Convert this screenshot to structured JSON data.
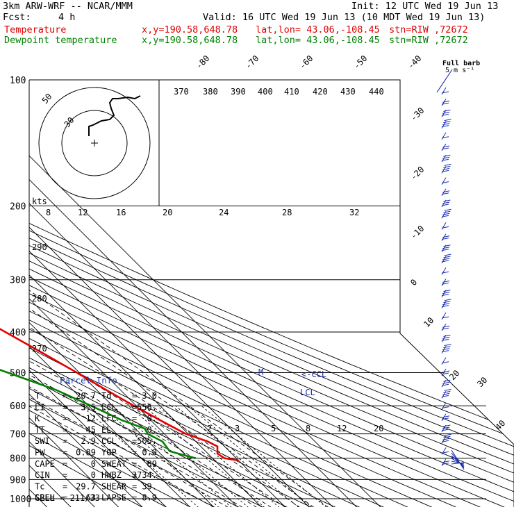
{
  "header": {
    "model": "3km ARW-WRF -- NCAR/MMM",
    "init": "Init: 12 UTC Wed 19 Jun 13",
    "fcst_label": "Fcst:",
    "fcst_value": "4 h",
    "valid": "Valid: 16 UTC Wed 19 Jun 13 (10 MDT Wed 19 Jun 13)",
    "temp_line": {
      "label": "Temperature",
      "xy": "x,y=190.58,648.78",
      "latlon": "lat,lon= 43.06,-108.45",
      "stn": "stn=RIW ,72672"
    },
    "dew_line": {
      "label": "Dewpoint temperature",
      "xy": "x,y=190.58,648.78",
      "latlon": "lat,lon= 43.06,-108.45",
      "stn": "stn=RIW ,72672"
    }
  },
  "colors": {
    "temperature": "#e60000",
    "dewpoint": "#008000",
    "barbs": "#1a2fb0",
    "grid": "#000000",
    "dashed": "#000000"
  },
  "chart_data": {
    "type": "line",
    "title": "",
    "y_axis": {
      "quantity": "pressure (hPa)",
      "scale": "log",
      "range": [
        1000,
        100
      ],
      "ticks": [
        100,
        200,
        300,
        400,
        500,
        600,
        700,
        800,
        900,
        1000
      ]
    },
    "isotherm_labels": [
      -80,
      -70,
      -60,
      -50,
      -40,
      -30,
      -20,
      -10,
      0,
      10,
      20,
      30,
      40
    ],
    "theta_e_labels": [
      370,
      380,
      390,
      400,
      410,
      420,
      430,
      440
    ],
    "dry_adiabat_labels": [
      290,
      280,
      270
    ],
    "mixing_ratio_labels": [
      2,
      3,
      5,
      8,
      12,
      20
    ],
    "series": [
      {
        "name": "Temperature",
        "points": [
          {
            "p": 100,
            "t": -59
          },
          {
            "p": 120,
            "t": -60
          },
          {
            "p": 140,
            "t": -62
          },
          {
            "p": 160,
            "t": -66
          },
          {
            "p": 180,
            "t": -67
          },
          {
            "p": 200,
            "t": -65
          },
          {
            "p": 230,
            "t": -58
          },
          {
            "p": 260,
            "t": -50
          },
          {
            "p": 300,
            "t": -42
          },
          {
            "p": 350,
            "t": -32
          },
          {
            "p": 400,
            "t": -24
          },
          {
            "p": 450,
            "t": -17
          },
          {
            "p": 500,
            "t": -11
          },
          {
            "p": 550,
            "t": -6
          },
          {
            "p": 600,
            "t": -1
          },
          {
            "p": 650,
            "t": 4
          },
          {
            "p": 700,
            "t": 9
          },
          {
            "p": 730,
            "t": 15
          },
          {
            "p": 750,
            "t": 17
          },
          {
            "p": 780,
            "t": 14
          },
          {
            "p": 800,
            "t": 15
          },
          {
            "p": 810,
            "t": 20
          }
        ]
      },
      {
        "name": "Dewpoint temperature",
        "points": [
          {
            "p": 100,
            "t": -85
          },
          {
            "p": 110,
            "t": -89
          },
          {
            "p": 130,
            "t": -90
          },
          {
            "p": 160,
            "t": -93
          },
          {
            "p": 190,
            "t": -96
          },
          {
            "p": 200,
            "t": -97
          },
          {
            "p": 230,
            "t": -98
          },
          {
            "p": 260,
            "t": -91
          },
          {
            "p": 300,
            "t": -80
          },
          {
            "p": 330,
            "t": -76
          },
          {
            "p": 370,
            "t": -71
          },
          {
            "p": 400,
            "t": -67
          },
          {
            "p": 450,
            "t": -55
          },
          {
            "p": 500,
            "t": -40
          },
          {
            "p": 550,
            "t": -27
          },
          {
            "p": 600,
            "t": -19
          },
          {
            "p": 650,
            "t": -12
          },
          {
            "p": 680,
            "t": -6
          },
          {
            "p": 700,
            "t": -7
          },
          {
            "p": 730,
            "t": -4
          },
          {
            "p": 770,
            "t": -5
          },
          {
            "p": 790,
            "t": 0
          },
          {
            "p": 800,
            "t": 3
          }
        ]
      }
    ],
    "markers": [
      {
        "label": "M",
        "p": 500
      },
      {
        "label": "<-CCL",
        "p": 505
      },
      {
        "label": "LCL",
        "p": 556
      }
    ],
    "hodograph": {
      "axis_unit": "kts",
      "ring_labels": [
        50,
        30
      ],
      "x_ticks": [
        8,
        12,
        16,
        20,
        24,
        28,
        32
      ]
    },
    "wind_barbs": {
      "title": "Full barb",
      "unit": "5 m s⁻¹"
    }
  },
  "parcel_info": {
    "title": "Parcel Info",
    "rows": [
      {
        "k1": "T",
        "v1": "20.7",
        "k2": "Td",
        "v2": "3.0"
      },
      {
        "k1": "LI",
        "v1": "3.5",
        "k2": "LCL",
        "v2": "556."
      },
      {
        "k1": "K",
        "v1": "12",
        "k2": "LFC",
        "v2": "0."
      },
      {
        "k1": "TT",
        "v1": "45",
        "k2": "EL",
        "v2": "0."
      },
      {
        "k1": "SWI",
        "v1": "2.9",
        "k2": "CCL",
        "v2": "505."
      },
      {
        "k1": "PW",
        "v1": "0.89",
        "k2": "YGP",
        "v2": "0.0"
      },
      {
        "k1": "CAPE",
        "v1": "0",
        "k2": "SWEAT",
        "v2": "89"
      },
      {
        "k1": "CIN",
        "v1": "0",
        "k2": "HWBZ",
        "v2": "3734."
      },
      {
        "k1": "Tc",
        "v1": "29.7",
        "k2": "SHEAR",
        "v2": "39."
      },
      {
        "k1": "SREH",
        "v1": "63",
        "k2": "LAPSE",
        "v2": "8.9"
      }
    ],
    "cell": "CELL = 211/33"
  }
}
